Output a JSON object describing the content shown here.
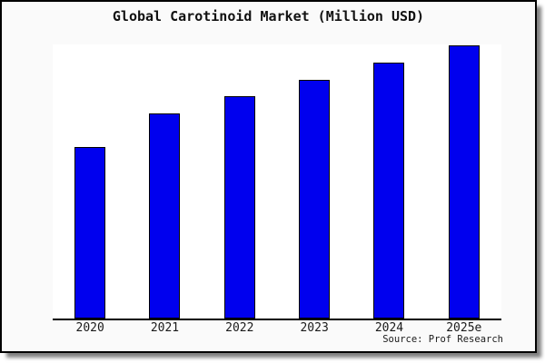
{
  "chart_data": {
    "type": "bar",
    "title": "Global Carotinoid Market (Million USD)",
    "categories": [
      "2020",
      "2021",
      "2022",
      "2023",
      "2024",
      "2025e"
    ],
    "values": [
      189,
      226,
      245,
      263,
      282,
      301
    ],
    "values_note": "y-axis is unlabeled (no ticks or gridlines); values are relative bar heights in pixels measured from the screenshot",
    "xlabel": "",
    "ylabel": "",
    "grid": false,
    "legend": false,
    "source": "Source: Prof Research",
    "bar_color": "#0000ee",
    "bar_border_color": "#000000",
    "frame_background": "#fafafa",
    "plot_background": "#ffffff",
    "frame_border_color": "#000000",
    "text_color": "#1a1a1a"
  }
}
